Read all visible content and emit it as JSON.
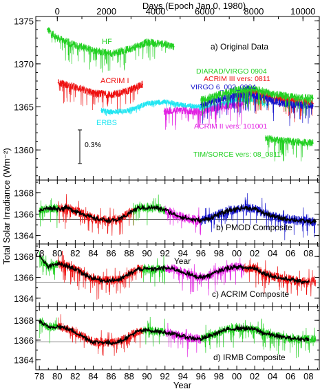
{
  "figure": {
    "top_axis_label": "Days (Epoch Jan 0, 1980)",
    "top_ticks": [
      "0",
      "2000",
      "4000",
      "6000",
      "8000",
      "10000"
    ],
    "y_label": "Total Solar Irradiance (Wm⁻²)",
    "x_label_bottom": "Year",
    "x_label_mid": "Year",
    "year_ticks": [
      "78",
      "80",
      "82",
      "84",
      "86",
      "88",
      "90",
      "92",
      "94",
      "96",
      "98",
      "00",
      "02",
      "04",
      "06",
      "08"
    ]
  },
  "colors": {
    "green": "#22d022",
    "red": "#ee1111",
    "blue": "#1515cc",
    "cyan": "#22e6f2",
    "magenta": "#e222e2",
    "black": "#000000"
  },
  "chart_data": [
    {
      "type": "line",
      "panel": "a",
      "title": "a) Original Data",
      "y_ticks": [
        "1375",
        "1370",
        "1365",
        "1360"
      ],
      "ylim": [
        1356.5,
        1375.5
      ],
      "xlim_year": [
        1977.6,
        2009.2
      ],
      "scale_bar_label": "0.3%",
      "series": [
        {
          "name": "HF",
          "color": "green",
          "x": [
            1978.9,
            1980.0,
            1982.0,
            1984.0,
            1986.0,
            1988.0,
            1990.0,
            1992.0,
            1993.0
          ],
          "values": [
            1374.0,
            1373.0,
            1372.2,
            1371.6,
            1371.2,
            1371.7,
            1372.5,
            1372.3,
            1372.0
          ]
        },
        {
          "name": "ACRIM I",
          "color": "red",
          "x": [
            1980.1,
            1982.0,
            1984.0,
            1986.0,
            1988.0,
            1989.5
          ],
          "values": [
            1367.8,
            1367.3,
            1366.6,
            1366.4,
            1366.9,
            1367.6
          ]
        },
        {
          "name": "ERBS",
          "color": "cyan",
          "x": [
            1984.9,
            1986.0,
            1988.0,
            1990.0,
            1992.0,
            1994.0,
            1996.0,
            1998.0,
            2000.0,
            2002.0,
            2003.6
          ],
          "values": [
            1364.6,
            1364.4,
            1364.6,
            1365.4,
            1365.6,
            1365.2,
            1365.0,
            1365.2,
            1365.8,
            1365.8,
            1365.3
          ]
        },
        {
          "name": "ACRIM II vers: 101001",
          "color": "magenta",
          "x": [
            1991.9,
            1994.0,
            1996.0,
            1998.0,
            2000.8
          ],
          "values": [
            1364.5,
            1364.6,
            1364.4,
            1365.0,
            1365.3
          ]
        },
        {
          "name": "ACRIM III vers: 0811",
          "color": "red",
          "x": [
            2000.0,
            2002.0,
            2004.0,
            2006.0,
            2008.5
          ],
          "values": [
            1366.3,
            1366.8,
            1366.1,
            1365.8,
            1365.4
          ]
        },
        {
          "name": "VIRGO 6_002_0904",
          "color": "blue",
          "x": [
            1996.0,
            1998.0,
            2000.0,
            2002.0,
            2004.0,
            2006.0,
            2008.5
          ],
          "values": [
            1365.3,
            1365.9,
            1366.4,
            1366.4,
            1365.7,
            1365.3,
            1365.1
          ]
        },
        {
          "name": "DIARAD/VIRGO 0904",
          "color": "green",
          "x": [
            1996.0,
            1998.0,
            2000.0,
            2002.0,
            2004.0,
            2006.0,
            2008.5
          ],
          "values": [
            1365.8,
            1366.4,
            1367.0,
            1367.1,
            1366.5,
            1366.2,
            1366.0
          ]
        },
        {
          "name": "TIM/SORCE vers: 08_0811",
          "color": "green",
          "x": [
            2003.2,
            2004.0,
            2005.0,
            2006.0,
            2007.0,
            2008.5
          ],
          "values": [
            1361.4,
            1361.2,
            1361.1,
            1361.0,
            1360.9,
            1360.8
          ]
        }
      ]
    },
    {
      "type": "line",
      "panel": "b",
      "title": "b) PMOD Composite",
      "y_ticks": [
        "1368",
        "1366",
        "1364"
      ],
      "ylim": [
        1363.2,
        1369.2
      ],
      "xlim_year": [
        1977.6,
        2009.2
      ],
      "reference_line": 1365.5,
      "series": [
        {
          "name": "PMOD",
          "color": "black",
          "x": [
            1978.0,
            1979.0,
            1980.0,
            1981.0,
            1982.0,
            1983.0,
            1984.0,
            1985.0,
            1986.0,
            1987.0,
            1988.0,
            1989.0,
            1990.0,
            1991.0,
            1992.0,
            1993.0,
            1994.0,
            1995.0,
            1996.0,
            1997.0,
            1998.0,
            1999.0,
            2000.0,
            2001.0,
            2002.0,
            2003.0,
            2004.0,
            2005.0,
            2006.0,
            2007.0,
            2008.0,
            2008.8
          ],
          "values": [
            1366.3,
            1366.6,
            1366.5,
            1366.6,
            1366.3,
            1366.0,
            1365.6,
            1365.5,
            1365.4,
            1365.5,
            1366.1,
            1366.6,
            1366.6,
            1366.6,
            1366.4,
            1366.0,
            1365.7,
            1365.5,
            1365.4,
            1365.6,
            1366.0,
            1366.3,
            1366.5,
            1366.6,
            1366.5,
            1366.1,
            1365.8,
            1365.6,
            1365.5,
            1365.4,
            1365.3,
            1365.3
          ]
        }
      ]
    },
    {
      "type": "line",
      "panel": "c",
      "title": "c) ACRIM Composite",
      "y_ticks": [
        "1368",
        "1366",
        "1364"
      ],
      "ylim": [
        1363.2,
        1369.2
      ],
      "xlim_year": [
        1977.6,
        2009.2
      ],
      "reference_line": 1365.5,
      "series": [
        {
          "name": "ACRIM",
          "color": "black",
          "x": [
            1978.0,
            1979.0,
            1980.0,
            1981.0,
            1982.0,
            1983.0,
            1984.0,
            1985.0,
            1986.0,
            1987.0,
            1988.0,
            1989.0,
            1990.0,
            1991.0,
            1992.0,
            1993.0,
            1994.0,
            1995.0,
            1996.0,
            1997.0,
            1998.0,
            1999.0,
            2000.0,
            2001.0,
            2002.0,
            2003.0,
            2004.0,
            2005.0,
            2006.0,
            2007.0,
            2008.0
          ],
          "values": [
            1368.0,
            1367.0,
            1367.3,
            1367.1,
            1366.8,
            1366.3,
            1365.9,
            1365.7,
            1365.7,
            1365.8,
            1366.3,
            1366.8,
            1366.8,
            1366.8,
            1366.9,
            1366.8,
            1366.5,
            1366.2,
            1366.0,
            1366.2,
            1366.6,
            1366.9,
            1367.0,
            1366.9,
            1366.9,
            1366.4,
            1366.1,
            1365.9,
            1365.8,
            1365.6,
            1365.6
          ]
        }
      ]
    },
    {
      "type": "line",
      "panel": "d",
      "title": "d) IRMB Composite",
      "y_ticks": [
        "1368",
        "1366",
        "1364"
      ],
      "ylim": [
        1363.0,
        1369.4
      ],
      "xlim_year": [
        1977.6,
        2009.2
      ],
      "reference_line": 1365.8,
      "series": [
        {
          "name": "IRMB",
          "color": "black",
          "x": [
            1978.0,
            1979.0,
            1980.0,
            1981.0,
            1982.0,
            1983.0,
            1984.0,
            1985.0,
            1986.0,
            1987.0,
            1988.0,
            1989.0,
            1990.0,
            1991.0,
            1992.0,
            1993.0,
            1994.0,
            1995.0,
            1996.0,
            1997.0,
            1998.0,
            1999.0,
            2000.0,
            2001.0,
            2002.0,
            2003.0,
            2004.0,
            2005.0,
            2006.0,
            2007.0,
            2008.0
          ],
          "values": [
            1367.9,
            1367.3,
            1367.4,
            1367.2,
            1366.8,
            1366.3,
            1365.8,
            1365.8,
            1365.7,
            1365.9,
            1366.4,
            1366.9,
            1367.0,
            1366.9,
            1366.8,
            1366.6,
            1366.4,
            1366.2,
            1366.1,
            1366.4,
            1366.8,
            1367.1,
            1367.2,
            1367.2,
            1367.1,
            1366.7,
            1366.5,
            1366.3,
            1366.2,
            1366.1,
            1366.1
          ]
        }
      ]
    }
  ]
}
